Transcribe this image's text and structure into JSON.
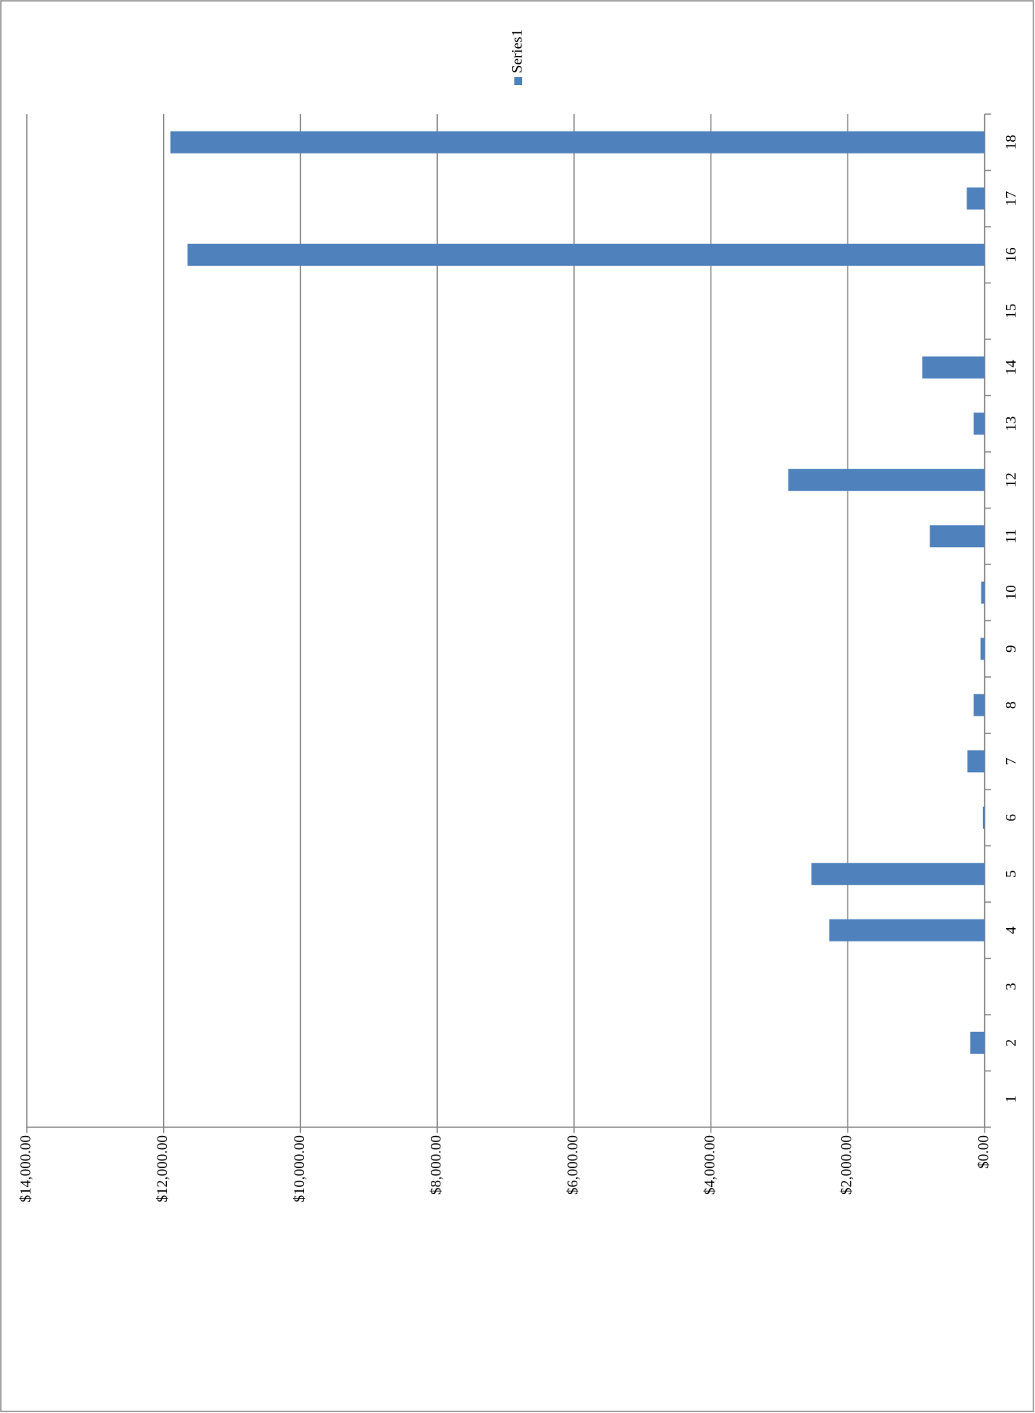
{
  "chart_data": {
    "type": "bar",
    "orientation": "horizontal",
    "categories": [
      1,
      2,
      3,
      4,
      5,
      6,
      7,
      8,
      9,
      10,
      11,
      12,
      13,
      14,
      15,
      16,
      17,
      18
    ],
    "series": [
      {
        "name": "Series1",
        "color": "#4f81bd",
        "values": [
          0,
          210,
          0,
          2270,
          2530,
          25,
          250,
          160,
          60,
          50,
          800,
          2870,
          160,
          910,
          0,
          11650,
          260,
          11900
        ]
      }
    ],
    "xlim": [
      0,
      14000
    ],
    "xticks": [
      {
        "value": 0,
        "label": "$0.00"
      },
      {
        "value": 2000,
        "label": "$2,000.00"
      },
      {
        "value": 4000,
        "label": "$4,000.00"
      },
      {
        "value": 6000,
        "label": "$6,000.00"
      },
      {
        "value": 8000,
        "label": "$8,000.00"
      },
      {
        "value": 10000,
        "label": "$10,000.00"
      },
      {
        "value": 12000,
        "label": "$12,000.00"
      },
      {
        "value": 14000,
        "label": "$14,000.00"
      }
    ],
    "grid": true,
    "legend": "top"
  }
}
